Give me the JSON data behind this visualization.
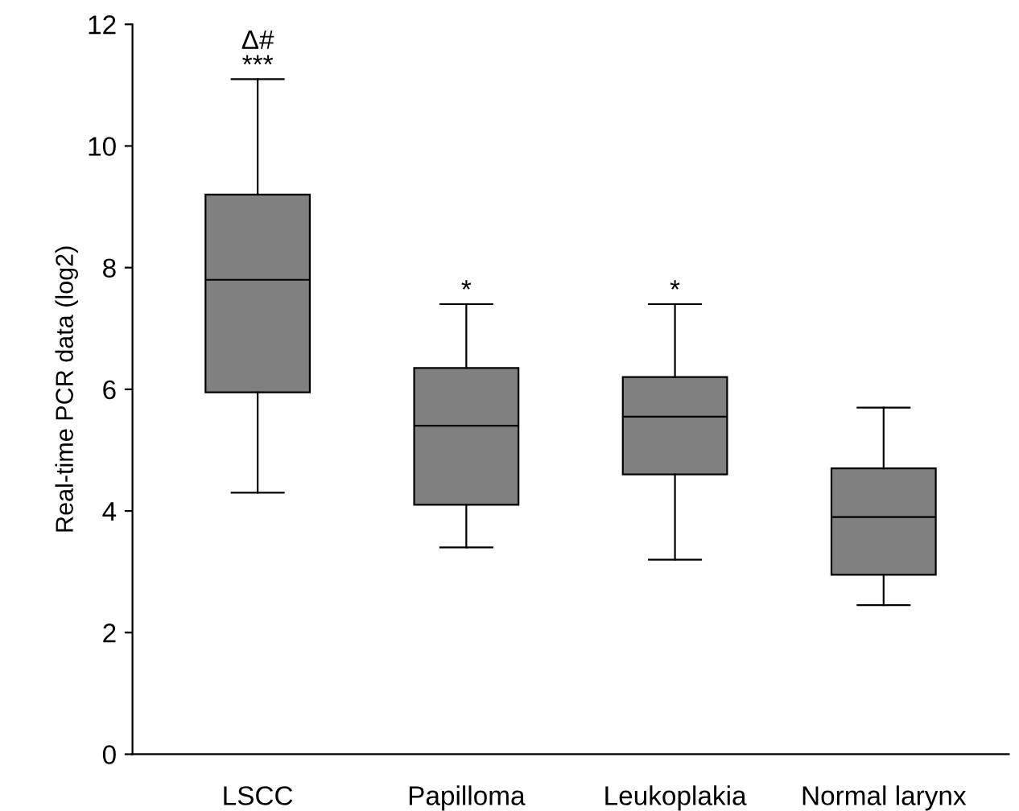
{
  "chart_data": {
    "type": "box",
    "ylabel": "Real-time PCR data (log2)",
    "categories": [
      "LSCC",
      "Papilloma",
      "Leukoplakia",
      "Normal larynx"
    ],
    "boxes": [
      {
        "low": 4.3,
        "q1": 5.95,
        "median": 7.8,
        "q3": 9.2,
        "high": 11.1
      },
      {
        "low": 3.4,
        "q1": 4.1,
        "median": 5.4,
        "q3": 6.35,
        "high": 7.4
      },
      {
        "low": 3.2,
        "q1": 4.6,
        "median": 5.55,
        "q3": 6.2,
        "high": 7.4
      },
      {
        "low": 2.45,
        "q1": 2.95,
        "median": 3.9,
        "q3": 4.7,
        "high": 5.7
      }
    ],
    "color": "#808080",
    "ylim": [
      0,
      12
    ],
    "yticks": [
      0,
      2,
      4,
      6,
      8,
      10,
      12
    ],
    "grid": false,
    "legend": false,
    "annotations": [
      {
        "text": "***",
        "x": "LSCC",
        "y": 11.1
      },
      {
        "text": "Δ#",
        "x": "LSCC",
        "y": 11.1
      },
      {
        "text": "*",
        "x": "Papilloma",
        "y": 7.4
      },
      {
        "text": "*",
        "x": "Leukoplakia",
        "y": 7.4
      }
    ]
  }
}
